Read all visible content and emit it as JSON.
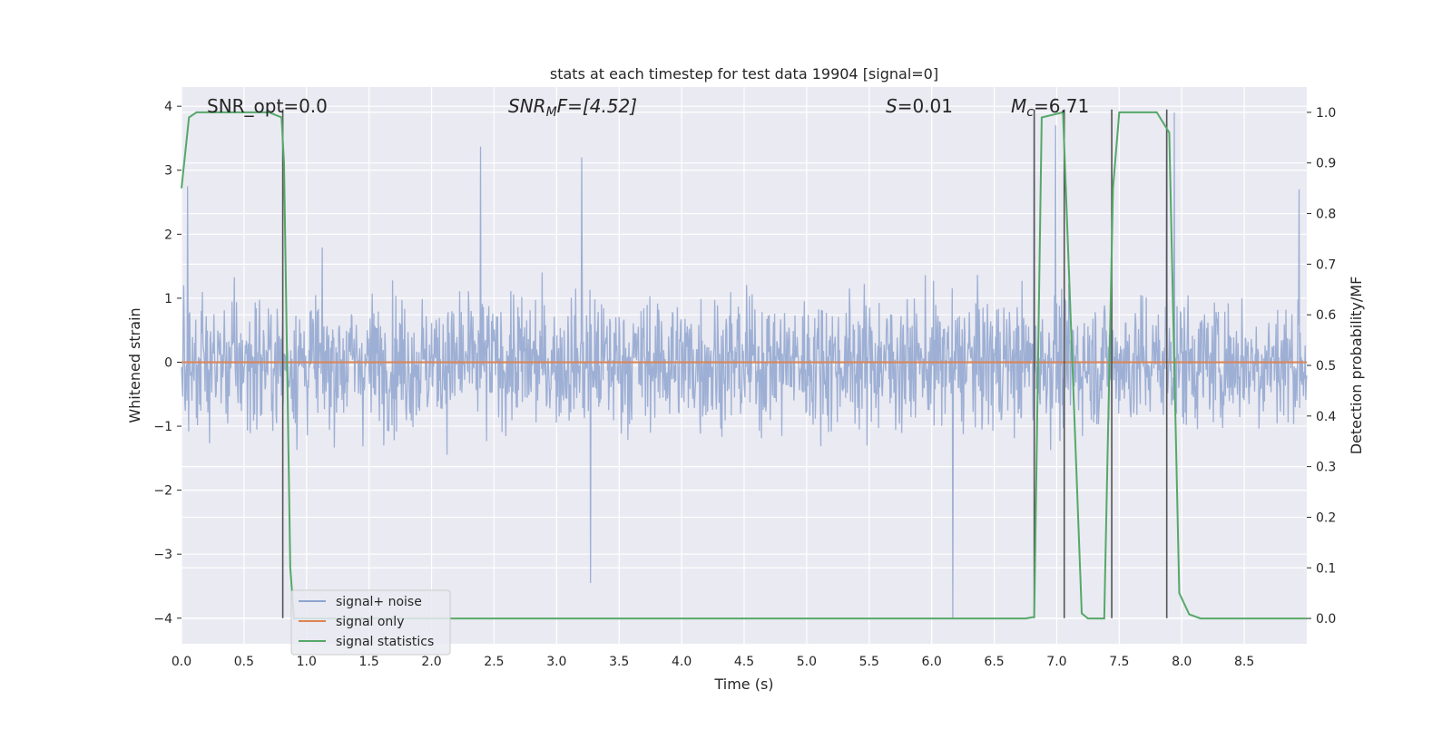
{
  "chart_data": {
    "type": "line",
    "title": "stats at each timestep for test data 19904 [signal=0]",
    "xlabel": "Time (s)",
    "ylabel_left": "Whitened strain",
    "ylabel_right": "Detection probability/MF",
    "xlim": [
      0.0,
      9.0
    ],
    "ylim_left": [
      -4.4,
      4.3
    ],
    "ylim_right": [
      -0.05,
      1.05
    ],
    "xticks": [
      0.0,
      0.5,
      1.0,
      1.5,
      2.0,
      2.5,
      3.0,
      3.5,
      4.0,
      4.5,
      5.0,
      5.5,
      6.0,
      6.5,
      7.0,
      7.5,
      8.0,
      8.5
    ],
    "xtick_labels": [
      "0.0",
      "0.5",
      "1.0",
      "1.5",
      "2.0",
      "2.5",
      "3.0",
      "3.5",
      "4.0",
      "4.5",
      "5.0",
      "5.5",
      "6.0",
      "6.5",
      "7.0",
      "7.5",
      "8.0",
      "8.5"
    ],
    "yticks_left": [
      4,
      3,
      2,
      1,
      0,
      -1,
      -2,
      -3,
      -4
    ],
    "ytick_labels_left": [
      "4",
      "3",
      "2",
      "1",
      "0",
      "−1",
      "−2",
      "−3",
      "−4"
    ],
    "yticks_right": [
      1.0,
      0.9,
      0.8,
      0.7,
      0.6,
      0.5,
      0.4,
      0.3,
      0.2,
      0.1,
      0.0
    ],
    "ytick_labels_right": [
      "1.0",
      "0.9",
      "0.8",
      "0.7",
      "0.6",
      "0.5",
      "0.4",
      "0.3",
      "0.2",
      "0.1",
      "0.0"
    ],
    "grid": true,
    "legend_position": "lower-left",
    "annotations": {
      "snr_opt": "SNR_opt=0.0",
      "snr_mf_main": "SNR",
      "snr_mf_sub": "M",
      "snr_mf_rest": "F=[4.52]",
      "s_main": "S",
      "s_rest": "=0.01",
      "mc_main": "M",
      "mc_sub": "c",
      "mc_rest": "=6.71"
    },
    "series": [
      {
        "name": "signal+ noise",
        "color": "#8fa5cf",
        "axis": "left",
        "style": "dense noisy band, approx. 2048 samples",
        "x_range": [
          0.0,
          9.0
        ],
        "typical_envelope": [
          -1.6,
          1.6
        ],
        "peaks": [
          {
            "x": 0.05,
            "y": 2.75
          },
          {
            "x": 2.39,
            "y": 3.37
          },
          {
            "x": 3.2,
            "y": 3.2
          },
          {
            "x": 3.27,
            "y": -3.45
          },
          {
            "x": 6.17,
            "y": -4.0
          },
          {
            "x": 6.82,
            "y": 3.9
          },
          {
            "x": 6.99,
            "y": 3.7
          },
          {
            "x": 7.88,
            "y": 3.9
          },
          {
            "x": 7.94,
            "y": 3.9
          },
          {
            "x": 8.94,
            "y": 2.7
          }
        ]
      },
      {
        "name": "signal only",
        "color": "#dd8452",
        "axis": "left",
        "x": [
          0.0,
          9.0
        ],
        "y": [
          0.0,
          0.0
        ]
      },
      {
        "name": "signal statistics",
        "color": "#55a868",
        "axis": "right",
        "x": [
          0.0,
          0.06,
          0.12,
          0.5,
          0.7,
          0.8,
          0.82,
          0.87,
          0.9,
          6.75,
          6.82,
          6.88,
          7.05,
          7.2,
          7.25,
          7.38,
          7.45,
          7.5,
          7.8,
          7.9,
          7.98,
          8.06,
          8.15,
          9.0
        ],
        "y": [
          0.85,
          0.99,
          1.0,
          1.0,
          1.0,
          0.99,
          0.9,
          0.1,
          0.0,
          0.0,
          0.003,
          0.99,
          1.0,
          0.01,
          0.0,
          0.0,
          0.85,
          1.0,
          1.0,
          0.96,
          0.05,
          0.008,
          0.0,
          0.0
        ]
      }
    ],
    "vertical_markers": [
      {
        "x": 0.81,
        "ymin": -4.0,
        "ymax": 3.95
      },
      {
        "x": 6.82,
        "ymin": -4.0,
        "ymax": 3.95
      },
      {
        "x": 7.06,
        "ymin": -4.0,
        "ymax": 3.95
      },
      {
        "x": 7.44,
        "ymin": -4.0,
        "ymax": 3.95
      },
      {
        "x": 7.88,
        "ymin": -4.0,
        "ymax": 3.95
      }
    ],
    "colors": {
      "background": "#eaeaf2",
      "grid": "#ffffff",
      "vertical_marker": "#555555",
      "legend_face": "#eaeaf2",
      "legend_edge": "#cccccc"
    }
  }
}
